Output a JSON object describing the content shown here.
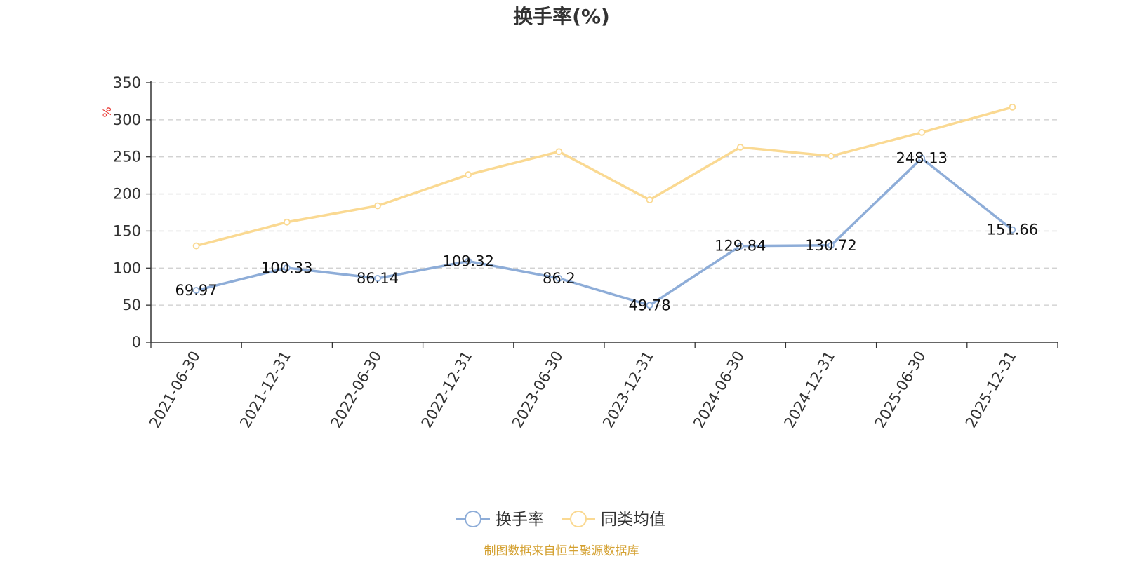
{
  "chart_data": {
    "type": "line",
    "title": "换手率(%)",
    "y_unit": "%",
    "categories": [
      "2021-06-30",
      "2021-12-31",
      "2022-06-30",
      "2022-12-31",
      "2023-06-30",
      "2023-12-31",
      "2024-06-30",
      "2024-12-31",
      "2025-06-30",
      "2025-12-31"
    ],
    "series": [
      {
        "name": "换手率",
        "color": "#8eadd8",
        "values": [
          69.97,
          100.33,
          86.14,
          109.32,
          86.2,
          49.78,
          129.84,
          130.72,
          248.13,
          151.66
        ],
        "labels": [
          "69.97",
          "100.33",
          "86.14",
          "109.32",
          "86.2",
          "49.78",
          "129.84",
          "130.72",
          "248.13",
          "151.66"
        ]
      },
      {
        "name": "同类均值",
        "color": "#fad992",
        "values": [
          130,
          162,
          184,
          226,
          257,
          192,
          263,
          251,
          283,
          317
        ]
      }
    ],
    "ylim": [
      0,
      350
    ],
    "yticks": [
      "0",
      "50",
      "100",
      "150",
      "200",
      "250",
      "300",
      "350"
    ],
    "grid": true,
    "legend_position": "bottom-center"
  },
  "colors": {
    "unit_label": "#e8332e",
    "source": "#d4a132",
    "axis": "#333333",
    "grid": "#cccccc"
  },
  "source": "制图数据来自恒生聚源数据库"
}
